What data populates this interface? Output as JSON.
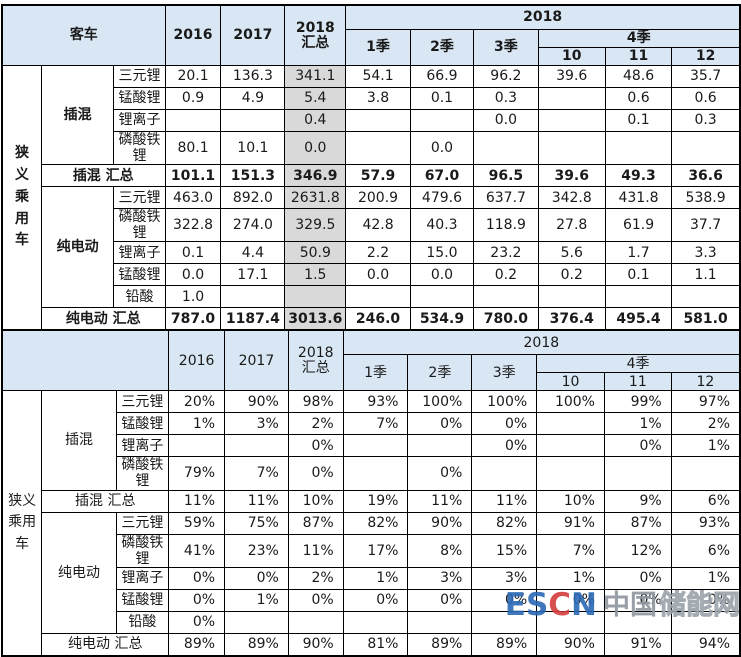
{
  "colors": {
    "header_bg": "#d9e7f4",
    "highlight_column_bg": "#d9d9d9",
    "border": "#000000",
    "watermark_blue": "#2a69b4",
    "watermark_red": "#d43c3c",
    "watermark_gray": "#8e959e"
  },
  "header": {
    "col_2016": "2016",
    "col_2017": "2017",
    "col_total_line1": "2018",
    "col_total_line2": "汇总",
    "group_2018": "2018",
    "q1": "1季",
    "q2": "2季",
    "q3": "3季",
    "q4": "4季",
    "m10": "10",
    "m11": "11",
    "m12": "12"
  },
  "chart_data": [
    {
      "type": "table",
      "corner_label": "客车",
      "side_label": "狭义乘用车",
      "column_order": [
        "2016",
        "2017",
        "2018 汇总",
        "2018 1季",
        "2018 2季",
        "2018 3季",
        "2018-10",
        "2018-11",
        "2018-12"
      ],
      "groups": [
        {
          "label": "插混",
          "rows": [
            {
              "label": "三元锂",
              "cells": [
                "20.1",
                "136.3",
                "341.1",
                "54.1",
                "66.9",
                "96.2",
                "39.6",
                "48.6",
                "35.7"
              ]
            },
            {
              "label": "锰酸锂",
              "cells": [
                "0.9",
                "4.9",
                "5.4",
                "3.8",
                "0.1",
                "0.3",
                "",
                "0.6",
                "0.6"
              ]
            },
            {
              "label": "锂离子",
              "cells": [
                "",
                "",
                "0.4",
                "",
                "",
                "0.0",
                "",
                "0.1",
                "0.3"
              ]
            },
            {
              "label": "磷酸铁锂",
              "cells": [
                "80.1",
                "10.1",
                "0.0",
                "",
                "0.0",
                "",
                "",
                "",
                ""
              ]
            }
          ],
          "total": {
            "label": "插混 汇总",
            "cells": [
              "101.1",
              "151.3",
              "346.9",
              "57.9",
              "67.0",
              "96.5",
              "39.6",
              "49.3",
              "36.6"
            ]
          }
        },
        {
          "label": "纯电动",
          "rows": [
            {
              "label": "三元锂",
              "cells": [
                "463.0",
                "892.0",
                "2631.8",
                "200.9",
                "479.6",
                "637.7",
                "342.8",
                "431.8",
                "538.9"
              ]
            },
            {
              "label": "磷酸铁锂",
              "cells": [
                "322.8",
                "274.0",
                "329.5",
                "42.8",
                "40.3",
                "118.9",
                "27.8",
                "61.9",
                "37.7"
              ]
            },
            {
              "label": "锂离子",
              "cells": [
                "0.1",
                "4.4",
                "50.9",
                "2.2",
                "15.0",
                "23.2",
                "5.6",
                "1.7",
                "3.3"
              ]
            },
            {
              "label": "锰酸锂",
              "cells": [
                "0.0",
                "17.1",
                "1.5",
                "0.0",
                "0.0",
                "0.2",
                "0.2",
                "0.1",
                "1.1"
              ]
            },
            {
              "label": "铅酸",
              "cells": [
                "1.0",
                "",
                "",
                "",
                "",
                "",
                "",
                "",
                ""
              ]
            }
          ],
          "total": {
            "label": "纯电动 汇总",
            "cells": [
              "787.0",
              "1187.4",
              "3013.6",
              "246.0",
              "534.9",
              "780.0",
              "376.4",
              "495.4",
              "581.0"
            ]
          }
        }
      ]
    },
    {
      "type": "table",
      "corner_label": "",
      "side_label": "狭义乘用车",
      "column_order": [
        "2016",
        "2017",
        "2018 汇总",
        "2018 1季",
        "2018 2季",
        "2018 3季",
        "2018-10",
        "2018-11",
        "2018-12"
      ],
      "groups": [
        {
          "label": "插混",
          "rows": [
            {
              "label": "三元锂",
              "cells": [
                "20%",
                "90%",
                "98%",
                "93%",
                "100%",
                "100%",
                "100%",
                "99%",
                "97%"
              ]
            },
            {
              "label": "锰酸锂",
              "cells": [
                "1%",
                "3%",
                "2%",
                "7%",
                "0%",
                "0%",
                "",
                "1%",
                "2%"
              ]
            },
            {
              "label": "锂离子",
              "cells": [
                "",
                "",
                "0%",
                "",
                "",
                "0%",
                "",
                "0%",
                "1%"
              ]
            },
            {
              "label": "磷酸铁锂",
              "cells": [
                "79%",
                "7%",
                "0%",
                "",
                "0%",
                "",
                "",
                "",
                ""
              ]
            }
          ],
          "total": {
            "label": "插混 汇总",
            "cells": [
              "11%",
              "11%",
              "10%",
              "19%",
              "11%",
              "11%",
              "10%",
              "9%",
              "6%"
            ]
          }
        },
        {
          "label": "纯电动",
          "rows": [
            {
              "label": "三元锂",
              "cells": [
                "59%",
                "75%",
                "87%",
                "82%",
                "90%",
                "82%",
                "91%",
                "87%",
                "93%"
              ]
            },
            {
              "label": "磷酸铁锂",
              "cells": [
                "41%",
                "23%",
                "11%",
                "17%",
                "8%",
                "15%",
                "7%",
                "12%",
                "6%"
              ]
            },
            {
              "label": "锂离子",
              "cells": [
                "0%",
                "0%",
                "2%",
                "1%",
                "3%",
                "3%",
                "1%",
                "0%",
                "1%"
              ]
            },
            {
              "label": "锰酸锂",
              "cells": [
                "0%",
                "1%",
                "0%",
                "0%",
                "0%",
                "0%",
                "0%",
                "0%",
                "0%"
              ]
            },
            {
              "label": "铅酸",
              "cells": [
                "0%",
                "",
                "",
                "",
                "",
                "",
                "",
                "",
                ""
              ]
            }
          ],
          "total": {
            "label": "纯电动 汇总",
            "cells": [
              "89%",
              "89%",
              "90%",
              "81%",
              "89%",
              "89%",
              "90%",
              "91%",
              "94%"
            ]
          }
        }
      ]
    }
  ],
  "watermark": {
    "es": "ES",
    "c": "C",
    "n": "N",
    "cn_solid": "中国",
    "cn_outline": "储能网"
  }
}
